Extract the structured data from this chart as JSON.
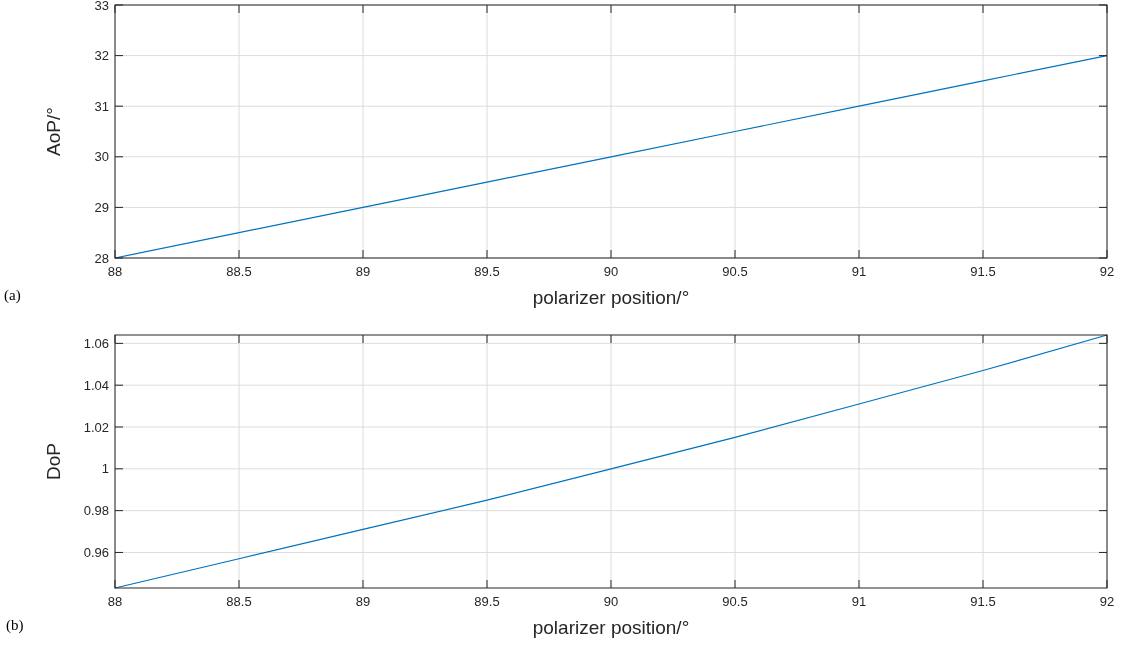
{
  "chart_data": [
    {
      "type": "line",
      "xlabel": "polarizer position/°",
      "ylabel": "AoP/°",
      "annotations": [
        "(a)"
      ],
      "x": [
        88,
        88.5,
        89,
        89.5,
        90,
        90.5,
        91,
        91.5,
        92
      ],
      "series": [
        {
          "color": "#0072bd",
          "values": [
            28,
            28.5,
            29,
            29.5,
            30,
            30.5,
            31,
            31.5,
            32
          ]
        }
      ],
      "xlim": [
        88,
        92
      ],
      "xticks": [
        88,
        88.5,
        89,
        89.5,
        90,
        90.5,
        91,
        91.5,
        92
      ],
      "ylim": [
        28,
        33
      ],
      "yticks": [
        28,
        29,
        30,
        31,
        32,
        33
      ],
      "grid": true
    },
    {
      "type": "line",
      "xlabel": "polarizer position/°",
      "ylabel": "DoP",
      "annotations": [
        "(b)"
      ],
      "x": [
        88,
        88.5,
        89,
        89.5,
        90,
        90.5,
        91,
        91.5,
        92
      ],
      "series": [
        {
          "color": "#0072bd",
          "values": [
            0.943,
            0.957,
            0.971,
            0.985,
            1.0,
            1.015,
            1.031,
            1.047,
            1.064
          ]
        }
      ],
      "xlim": [
        88,
        92
      ],
      "xticks": [
        88,
        88.5,
        89,
        89.5,
        90,
        90.5,
        91,
        91.5,
        92
      ],
      "ylim": [
        0.943,
        1.064
      ],
      "yticks": [
        0.96,
        0.98,
        1,
        1.02,
        1.04,
        1.06
      ],
      "grid": true
    }
  ]
}
